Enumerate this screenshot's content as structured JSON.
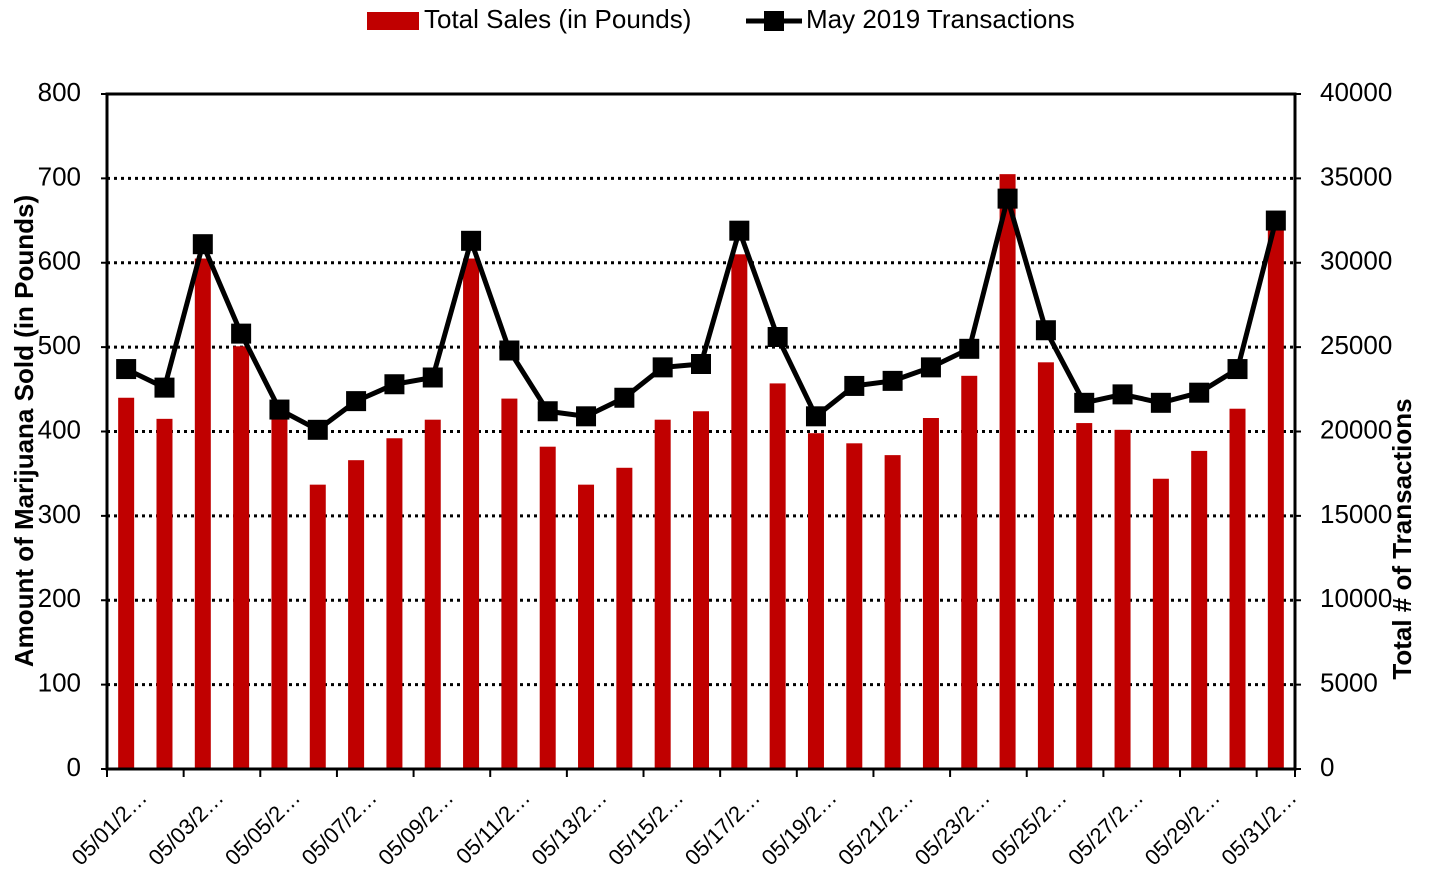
{
  "chart_data": {
    "type": "bar_line",
    "categories": [
      "05/01/2…",
      null,
      "05/03/2…",
      null,
      "05/05/2…",
      null,
      "05/07/2…",
      null,
      "05/09/2…",
      null,
      "05/11/2…",
      null,
      "05/13/2…",
      null,
      "05/15/2…",
      null,
      "05/17/2…",
      null,
      "05/19/2…",
      null,
      "05/21/2…",
      null,
      "05/23/2…",
      null,
      "05/25/2…",
      null,
      "05/27/2…",
      null,
      "05/29/2…",
      null,
      "05/31/2…"
    ],
    "series": [
      {
        "name": "Total Sales (in Pounds)",
        "type": "bar",
        "color": "#c00000",
        "values": [
          440,
          415,
          605,
          501,
          415,
          337,
          366,
          392,
          414,
          605,
          439,
          382,
          337,
          357,
          414,
          424,
          610,
          457,
          398,
          386,
          372,
          416,
          466,
          705,
          482,
          410,
          402,
          344,
          377,
          427,
          645
        ]
      },
      {
        "name": "May 2019 Transactions",
        "type": "line",
        "axis": "y2",
        "color": "#000000",
        "values": [
          23700,
          22600,
          31100,
          25800,
          21300,
          20100,
          21800,
          22800,
          23200,
          31300,
          24800,
          21200,
          20900,
          22000,
          23800,
          24000,
          31900,
          25600,
          20900,
          22700,
          23000,
          23800,
          24900,
          33800,
          26000,
          21700,
          22200,
          21700,
          22300,
          23700,
          32500
        ]
      }
    ],
    "y_label": "Amount of Marijuana Sold (in Pounds)",
    "y2_label": "Total # of Transactions",
    "ylim": [
      0,
      800
    ],
    "yticks": [
      0,
      100,
      200,
      300,
      400,
      500,
      600,
      700,
      800
    ],
    "y2lim": [
      0,
      40000
    ],
    "y2ticks": [
      0,
      5000,
      10000,
      15000,
      20000,
      25000,
      30000,
      35000,
      40000
    ],
    "grid": true,
    "legend": "top"
  }
}
